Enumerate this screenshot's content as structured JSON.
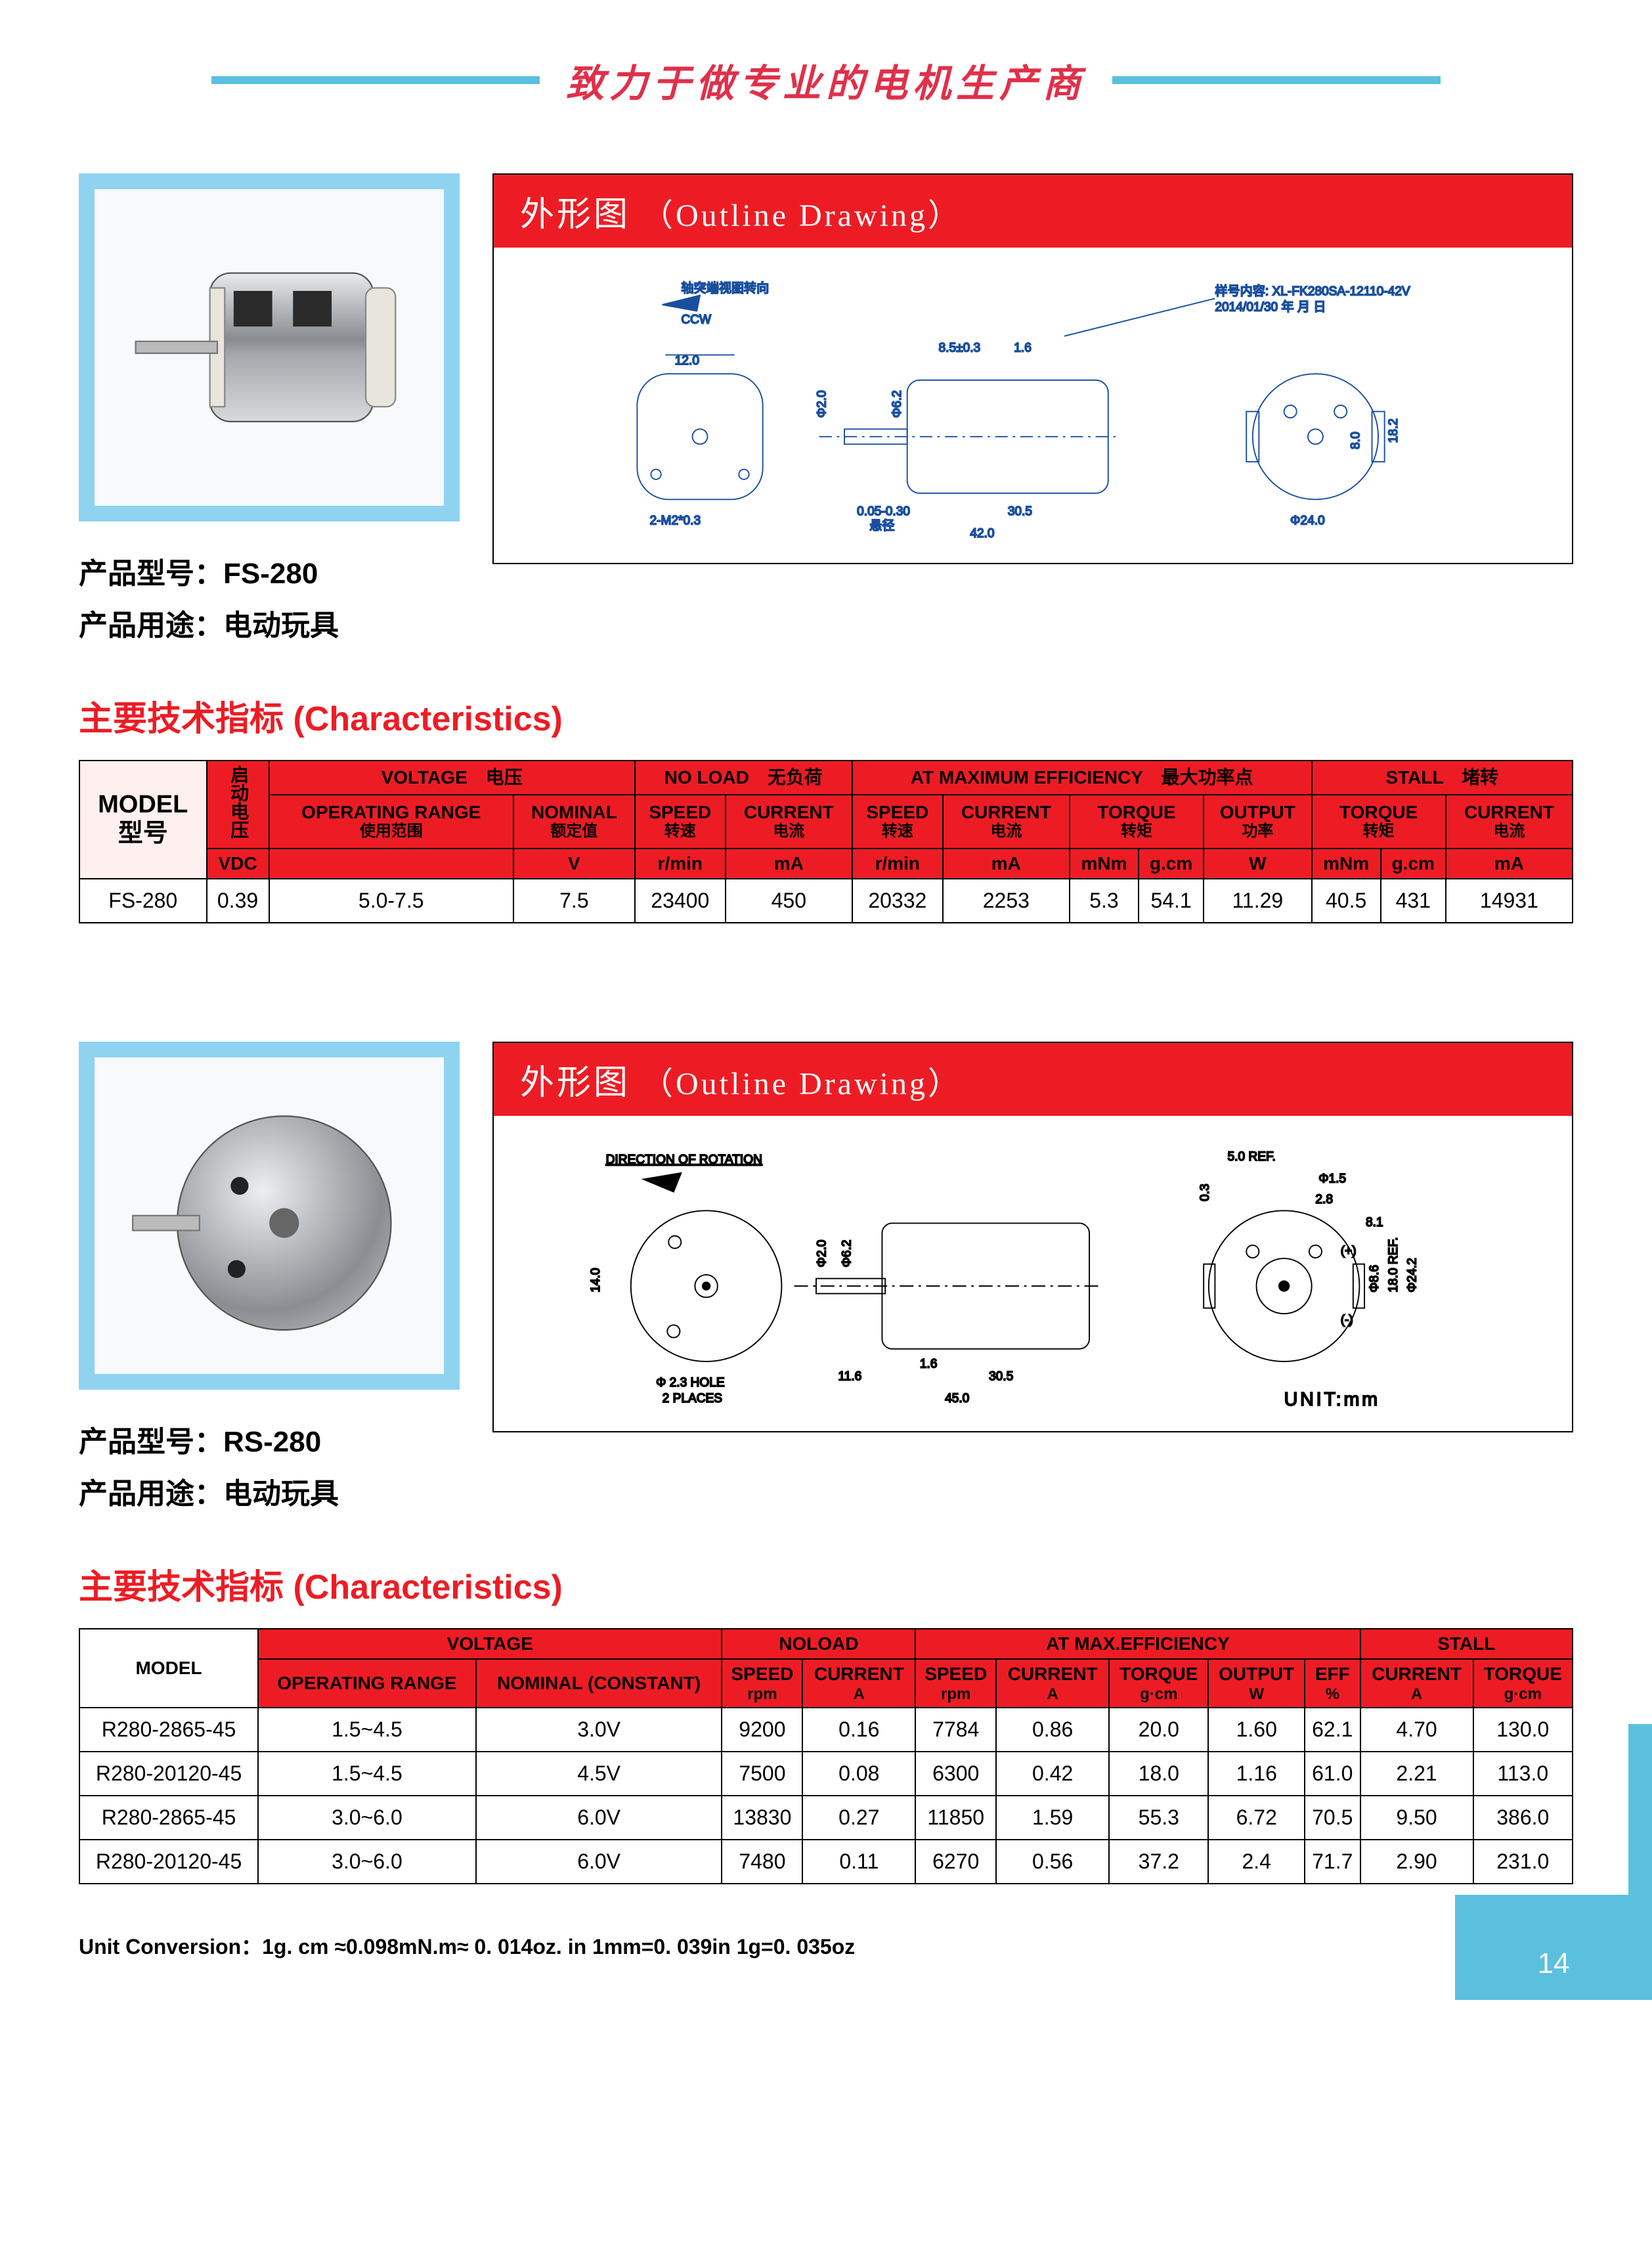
{
  "header": {
    "slogan": "致力于做专业的电机生产商"
  },
  "colors": {
    "accent_red": "#ed1c24",
    "accent_blue": "#5bc0de",
    "frame_blue": "#8fd3f0",
    "text_black": "#000000",
    "bg_white": "#ffffff"
  },
  "product1": {
    "model_label": "产品型号：",
    "model_value": "FS-280",
    "use_label": "产品用途：",
    "use_value": "电动玩具",
    "drawing_title_cn": "外形图",
    "drawing_title_en": "（Outline Drawing）",
    "drawing_notes": {
      "rotation_label_cn": "轴突端视图转向",
      "rotation_dir": "CCW",
      "dims": [
        "12.0",
        "2-M2*0.3",
        "8.5±0.3",
        "1.6",
        "Φ2.0",
        "Φ6.2",
        "30.5",
        "42.0",
        "0.05-0.30",
        "Φ24.0",
        "18.2",
        "8.0",
        "悬径"
      ]
    }
  },
  "product2": {
    "model_label": "产品型号：",
    "model_value": "RS-280",
    "use_label": "产品用途：",
    "use_value": "电动玩具",
    "drawing_title_cn": "外形图",
    "drawing_title_en": "（Outline Drawing）",
    "drawing_notes": {
      "rotation_label": "DIRECTION OF ROTATION",
      "unit_label": "UNIT:mm",
      "dims": [
        "14.0",
        "Φ 2.3 HOLE",
        "2 PLACES",
        "Φ6.2",
        "Φ2.0",
        "11.6",
        "1.6",
        "30.5",
        "45.0",
        "5.0 REF.",
        "Φ1.5",
        "2.8",
        "0.3",
        "8.1",
        "Φ8.6",
        "18.0 REF.",
        "Φ24.2",
        "(+)",
        "(-)"
      ]
    }
  },
  "section_title": {
    "cn": "主要技术指标",
    "en": "(Characteristics)"
  },
  "table1": {
    "group_headers": {
      "model": {
        "en": "MODEL",
        "cn": "型号"
      },
      "vdc_col": {
        "cn": "启动电压",
        "unit": "VDC"
      },
      "voltage": {
        "en": "VOLTAGE",
        "cn": "电压"
      },
      "noload": {
        "en": "NO LOAD",
        "cn": "无负荷"
      },
      "maxeff": {
        "en": "AT MAXIMUM EFFICIENCY",
        "cn": "最大功率点"
      },
      "stall": {
        "en": "STALL",
        "cn": "堵转"
      }
    },
    "sub_headers": {
      "oper_range": {
        "en": "OPERATING RANGE",
        "cn": "使用范围"
      },
      "nominal": {
        "en": "NOMINAL",
        "cn": "额定值",
        "unit": "V"
      },
      "speed": {
        "en": "SPEED",
        "cn": "转速",
        "unit": "r/min"
      },
      "current": {
        "en": "CURRENT",
        "cn": "电流",
        "unit": "mA"
      },
      "torque": {
        "en": "TORQUE",
        "cn": "转矩",
        "unit1": "mNm",
        "unit2": "g.cm"
      },
      "output": {
        "en": "OUTPUT",
        "cn": "功率",
        "unit": "W"
      }
    },
    "rows": [
      {
        "model": "FS-280",
        "vdc": "0.39",
        "range": "5.0-7.5",
        "nominal": "7.5",
        "nl_speed": "23400",
        "nl_current": "450",
        "me_speed": "20332",
        "me_current": "2253",
        "me_torque_mnm": "5.3",
        "me_torque_gcm": "54.1",
        "me_output": "11.29",
        "st_torque_mnm": "40.5",
        "st_torque_gcm": "431",
        "st_current": "14931"
      }
    ]
  },
  "table2": {
    "group_headers": {
      "model": "MODEL",
      "voltage": "VOLTAGE",
      "noload": "NOLOAD",
      "maxeff": "AT MAX.EFFICIENCY",
      "stall": "STALL"
    },
    "sub_headers": {
      "oper_range": "OPERATING RANGE",
      "nominal": "NOMINAL (CONSTANT)",
      "speed": {
        "lbl": "SPEED",
        "unit": "rpm"
      },
      "current": {
        "lbl": "CURRENT",
        "unit": "A"
      },
      "torque": {
        "lbl": "TORQUE",
        "unit": "g·cm"
      },
      "output": {
        "lbl": "OUTPUT",
        "unit": "W"
      },
      "eff": {
        "lbl": "EFF",
        "unit": "%"
      }
    },
    "rows": [
      {
        "model": "R280-2865-45",
        "range": "1.5~4.5",
        "nominal": "3.0V",
        "nl_speed": "9200",
        "nl_current": "0.16",
        "me_speed": "7784",
        "me_current": "0.86",
        "me_torque": "20.0",
        "me_output": "1.60",
        "me_eff": "62.1",
        "st_current": "4.70",
        "st_torque": "130.0"
      },
      {
        "model": "R280-20120-45",
        "range": "1.5~4.5",
        "nominal": "4.5V",
        "nl_speed": "7500",
        "nl_current": "0.08",
        "me_speed": "6300",
        "me_current": "0.42",
        "me_torque": "18.0",
        "me_output": "1.16",
        "me_eff": "61.0",
        "st_current": "2.21",
        "st_torque": "113.0"
      },
      {
        "model": "R280-2865-45",
        "range": "3.0~6.0",
        "nominal": "6.0V",
        "nl_speed": "13830",
        "nl_current": "0.27",
        "me_speed": "11850",
        "me_current": "1.59",
        "me_torque": "55.3",
        "me_output": "6.72",
        "me_eff": "70.5",
        "st_current": "9.50",
        "st_torque": "386.0"
      },
      {
        "model": "R280-20120-45",
        "range": "3.0~6.0",
        "nominal": "6.0V",
        "nl_speed": "7480",
        "nl_current": "0.11",
        "me_speed": "6270",
        "me_current": "0.56",
        "me_torque": "37.2",
        "me_output": "2.4",
        "me_eff": "71.7",
        "st_current": "2.90",
        "st_torque": "231.0"
      }
    ]
  },
  "unit_conversion": "Unit Conversion：1g. cm  ≈0.098mN.m≈ 0. 014oz. in    1mm=0. 039in    1g=0. 035oz",
  "page_number": "14"
}
